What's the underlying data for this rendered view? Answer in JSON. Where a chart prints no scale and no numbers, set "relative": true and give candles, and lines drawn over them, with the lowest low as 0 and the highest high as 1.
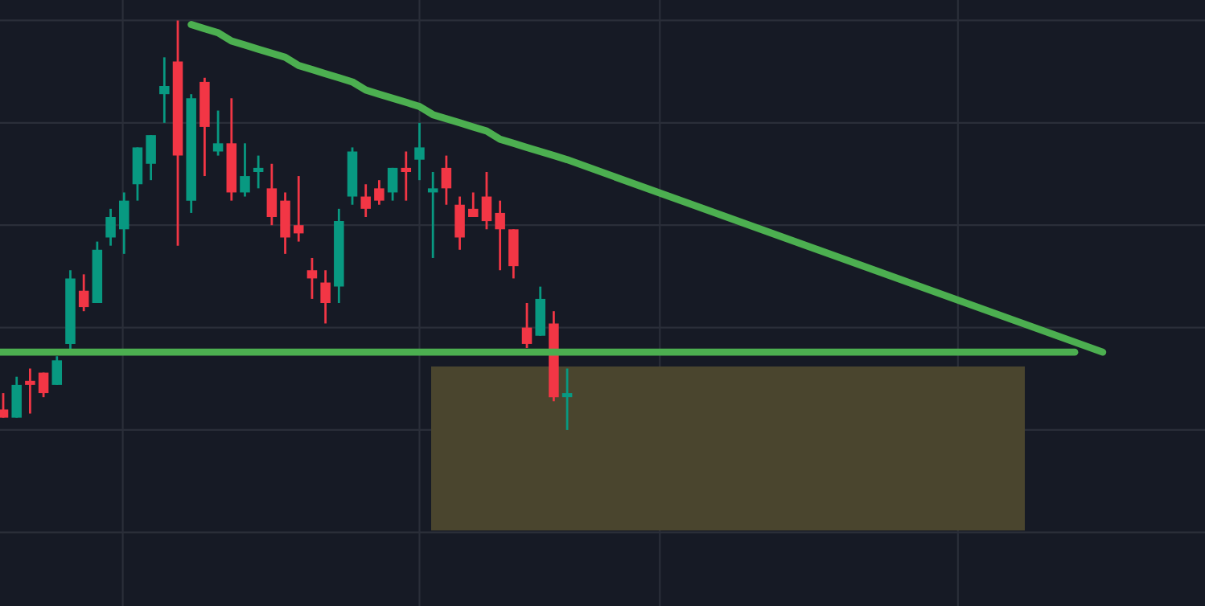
{
  "chart_data": {
    "type": "candlestick",
    "relative": true,
    "grid": true,
    "categories": [
      null,
      null,
      null,
      null,
      null,
      null,
      null,
      null,
      null,
      null,
      null,
      null,
      null,
      null,
      null,
      null,
      null,
      null,
      null,
      null,
      null,
      null,
      null,
      null,
      null,
      null,
      null,
      null,
      null,
      null,
      null,
      null,
      null,
      null,
      null,
      null,
      null,
      null,
      null,
      null,
      null,
      null,
      null
    ],
    "ohlc": [
      [
        0.05,
        0.09,
        0.03,
        0.03
      ],
      [
        0.03,
        0.13,
        0.03,
        0.11
      ],
      [
        0.12,
        0.15,
        0.04,
        0.11
      ],
      [
        0.14,
        0.14,
        0.08,
        0.09
      ],
      [
        0.11,
        0.18,
        0.11,
        0.17
      ],
      [
        0.21,
        0.39,
        0.19,
        0.37
      ],
      [
        0.34,
        0.38,
        0.29,
        0.3
      ],
      [
        0.31,
        0.46,
        0.31,
        0.44
      ],
      [
        0.47,
        0.54,
        0.45,
        0.52
      ],
      [
        0.49,
        0.58,
        0.43,
        0.56
      ],
      [
        0.6,
        0.69,
        0.56,
        0.69
      ],
      [
        0.65,
        0.72,
        0.61,
        0.72
      ],
      [
        0.82,
        0.91,
        0.75,
        0.84
      ],
      [
        0.9,
        1.0,
        0.45,
        0.67
      ],
      [
        0.56,
        0.82,
        0.53,
        0.81
      ],
      [
        0.85,
        0.86,
        0.62,
        0.74
      ],
      [
        0.68,
        0.78,
        0.67,
        0.7
      ],
      [
        0.7,
        0.81,
        0.56,
        0.58
      ],
      [
        0.58,
        0.7,
        0.57,
        0.62
      ],
      [
        0.63,
        0.67,
        0.59,
        0.64
      ],
      [
        0.59,
        0.65,
        0.5,
        0.52
      ],
      [
        0.56,
        0.58,
        0.43,
        0.47
      ],
      [
        0.5,
        0.62,
        0.46,
        0.48
      ],
      [
        0.39,
        0.42,
        0.32,
        0.37
      ],
      [
        0.36,
        0.39,
        0.26,
        0.31
      ],
      [
        0.35,
        0.54,
        0.31,
        0.51
      ],
      [
        0.57,
        0.69,
        0.55,
        0.68
      ],
      [
        0.57,
        0.6,
        0.52,
        0.54
      ],
      [
        0.59,
        0.61,
        0.55,
        0.56
      ],
      [
        0.58,
        0.64,
        0.56,
        0.64
      ],
      [
        0.64,
        0.68,
        0.56,
        0.63
      ],
      [
        0.66,
        0.75,
        0.61,
        0.69
      ],
      [
        0.58,
        0.63,
        0.42,
        0.59
      ],
      [
        0.64,
        0.67,
        0.55,
        0.59
      ],
      [
        0.55,
        0.57,
        0.44,
        0.47
      ],
      [
        0.54,
        0.58,
        0.52,
        0.52
      ],
      [
        0.57,
        0.63,
        0.49,
        0.51
      ],
      [
        0.53,
        0.56,
        0.39,
        0.49
      ],
      [
        0.49,
        0.49,
        0.37,
        0.4
      ],
      [
        0.25,
        0.31,
        0.2,
        0.21
      ],
      [
        0.23,
        0.35,
        0.23,
        0.32
      ],
      [
        0.26,
        0.29,
        0.07,
        0.08
      ],
      [
        0.08,
        0.15,
        0.0,
        0.09
      ]
    ],
    "colors": [
      "#f23645",
      "#089981",
      "#f23645",
      "#f23645",
      "#089981",
      "#089981",
      "#f23645",
      "#089981",
      "#089981",
      "#089981",
      "#089981",
      "#089981",
      "#089981",
      "#f23645",
      "#089981",
      "#f23645",
      "#089981",
      "#f23645",
      "#089981",
      "#089981",
      "#f23645",
      "#f23645",
      "#f23645",
      "#f23645",
      "#f23645",
      "#089981",
      "#089981",
      "#f23645",
      "#f23645",
      "#089981",
      "#f23645",
      "#089981",
      "#089981",
      "#f23645",
      "#f23645",
      "#f23645",
      "#f23645",
      "#f23645",
      "#f23645",
      "#f23645",
      "#089981",
      "#f23645",
      "#089981"
    ],
    "series": [
      {
        "type": "line",
        "color": "#4caf50",
        "values": [
          null,
          null,
          null,
          null,
          null,
          null,
          null,
          null,
          null,
          null,
          null,
          null,
          null,
          null,
          0.99,
          0.98,
          0.97,
          0.95,
          0.94,
          0.93,
          0.92,
          0.91,
          0.89,
          0.88,
          0.87,
          0.86,
          0.85,
          0.83,
          0.82,
          0.81,
          0.8,
          0.79,
          0.77,
          0.76,
          0.75,
          0.74,
          0.73,
          0.71,
          0.7,
          0.69,
          0.68,
          0.67,
          0.66
        ]
      }
    ],
    "ref_lines": [
      {
        "axis": "y",
        "value": 0.19,
        "color": "#4caf50"
      }
    ]
  }
}
